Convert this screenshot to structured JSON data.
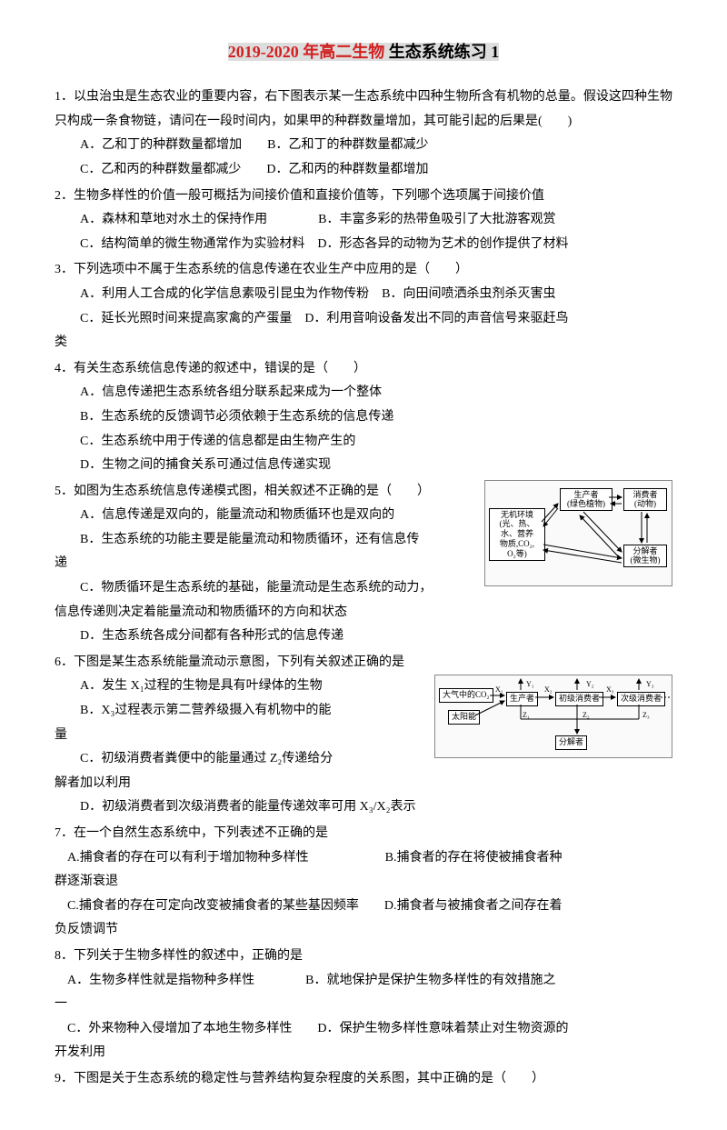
{
  "title": {
    "red_part": "2019-2020 年高二生物",
    "black_part": " 生态系统练习 1"
  },
  "questions": [
    {
      "num": "1",
      "text": "．以虫治虫是生态农业的重要内容，右下图表示某一生态系统中四种生物所含有机物的总量。假设这四种生物只构成一条食物链，请问在一段时间内，如果甲的种群数量增加，其可能引起的后果是(　　)",
      "options": [
        "A．乙和丁的种群数量都增加　　B．乙和丁的种群数量都减少",
        "C．乙和丙的种群数量都减少　　D．乙和丙的种群数量都增加"
      ]
    },
    {
      "num": "2",
      "text": "．生物多样性的价值一般可概括为间接价值和直接价值等，下列哪个选项属于间接价值",
      "options": [
        "A．森林和草地对水土的保持作用　　　　B．丰富多彩的热带鱼吸引了大批游客观赏",
        "C．结构简单的微生物通常作为实验材料　D．形态各异的动物为艺术的创作提供了材料"
      ]
    },
    {
      "num": "3",
      "text": "．下列选项中不属于生态系统的信息传递在农业生产中应用的是（　　）",
      "options": [
        "A．利用人工合成的化学信息素吸引昆虫为作物传粉　B．向田间喷洒杀虫剂杀灭害虫",
        "C．延长光照时间来提高家禽的产蛋量　D．利用音响设备发出不同的声音信号来驱赶鸟"
      ],
      "tail": "类"
    },
    {
      "num": "4",
      "text": "．有关生态系统信息传递的叙述中，错误的是（　　）",
      "options": [
        "A．信息传递把生态系统各组分联系起来成为一个整体",
        "B．生态系统的反馈调节必须依赖于生态系统的信息传递",
        "C．生态系统中用于传递的信息都是由生物产生的",
        "D．生物之间的捕食关系可通过信息传递实现"
      ]
    },
    {
      "num": "5",
      "text": "．如图为生态系统信息传递模式图，相关叙述不正确的是（　　）",
      "options": [
        "A．信息传递是双向的，能量流动和物质循环也是双向的",
        "B．生态系统的功能主要是能量流动和物质循环，还有信息传",
        "C．物质循环是生态系统的基础，能量流动是生态系统的动力，",
        "D．生态系统各成分间都有各种形式的信息传递"
      ],
      "mid_lines": [
        "递",
        "信息传递则决定着能量流动和物质循环的方向和状态"
      ],
      "diagram": 1
    },
    {
      "num": "6",
      "text": "．下图是某生态系统能量流动示意图，下列有关叙述正确的是",
      "options": [
        "A．发生 X₁过程的生物是具有叶绿体的生物",
        "B．X₃过程表示第二营养级摄入有机物中的能",
        "C．初级消费者粪便中的能量通过 Z₂传递给分",
        "D．初级消费者到次级消费者的能量传递效率可用 X₃/X₂表示"
      ],
      "mid_lines": [
        "量",
        "解者加以利用"
      ],
      "diagram": 2
    },
    {
      "num": "7",
      "text": "．在一个自然生态系统中，下列表述不正确的是",
      "options": [
        "A.捕食者的存在可以有利于增加物种多样性　　　　　　B.捕食者的存在将使被捕食者种",
        "C.捕食者的存在可定向改变被捕食者的某些基因频率　　D.捕食者与被捕食者之间存在着"
      ],
      "mid_lines": [
        "群逐渐衰退",
        "负反馈调节"
      ]
    },
    {
      "num": "8",
      "text": "．下列关于生物多样性的叙述中，正确的是",
      "options": [
        "A．生物多样性就是指物种多样性　　　　B．就地保护是保护生物多样性的有效措施之",
        "C．外来物种入侵增加了本地生物多样性　　D．保护生物多样性意味着禁止对生物资源的"
      ],
      "mid_lines": [
        "一",
        "开发利用"
      ]
    },
    {
      "num": "9",
      "text": "．下图是关于生态系统的稳定性与营养结构复杂程度的关系图，其中正确的是（　　）"
    }
  ],
  "diagram1": {
    "env": "无机环境\n(光、热、\n水、营养\n物质,CO₂,\nO₂等)",
    "producer": "生产者\n(绿色植物)",
    "consumer": "消费者\n(动物)",
    "decomposer": "分解者\n(微生物)"
  },
  "diagram2": {
    "co2": "大气中的CO₂",
    "sun": "太阳能",
    "producer": "生产者",
    "primary": "初级消费者",
    "secondary": "次级消费者",
    "decomposer": "分解者",
    "x1": "X₁",
    "x2": "X₂",
    "x3": "X₃",
    "y1": "Y₁",
    "y2": "Y₂",
    "y3": "Y₃",
    "z1": "Z₁",
    "z2": "Z₂",
    "z3": "Z₃"
  }
}
